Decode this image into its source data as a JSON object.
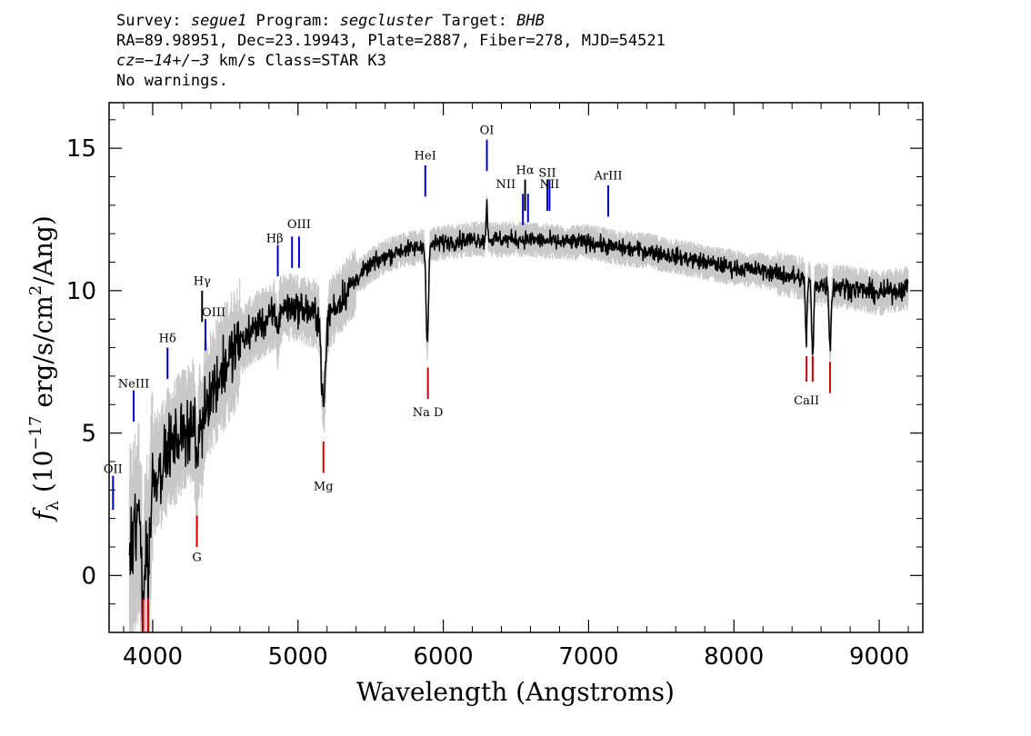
{
  "header": {
    "line1": {
      "survey_label": "Survey: ",
      "survey": "segue1",
      "program_label": " Program: ",
      "program": "segcluster",
      "target_label": " Target: ",
      "target": "BHB"
    },
    "line2": "RA=89.98951, Dec=23.19943, Plate=2887, Fiber=278, MJD=54521",
    "line3": {
      "cz": "cz=−14+/−3",
      "rest": " km/s Class=STAR K3"
    },
    "line4": "No warnings."
  },
  "chart_data": {
    "type": "line",
    "xlabel": "Wavelength (Angstroms)",
    "ylabel_parts": {
      "f": "f",
      "sub": "λ",
      "pre": " (10",
      "exp": "−17",
      "mid": " erg/s/cm",
      "exp2": "2",
      "post": "/Ang)"
    },
    "xlim": [
      3700,
      9300
    ],
    "ylim": [
      -2,
      16.6
    ],
    "xticks": [
      4000,
      5000,
      6000,
      7000,
      8000,
      9000
    ],
    "yticks": [
      0,
      5,
      10,
      15
    ],
    "continuum": [
      [
        3850,
        1.0
      ],
      [
        3900,
        2.0
      ],
      [
        4000,
        3.3
      ],
      [
        4100,
        4.3
      ],
      [
        4200,
        5.0
      ],
      [
        4300,
        5.5
      ],
      [
        4400,
        6.4
      ],
      [
        4500,
        7.4
      ],
      [
        4600,
        8.2
      ],
      [
        4700,
        8.7
      ],
      [
        4800,
        9.0
      ],
      [
        4900,
        9.4
      ],
      [
        5000,
        9.4
      ],
      [
        5100,
        9.2
      ],
      [
        5200,
        9.1
      ],
      [
        5300,
        9.7
      ],
      [
        5400,
        10.4
      ],
      [
        5500,
        10.9
      ],
      [
        5600,
        11.2
      ],
      [
        5700,
        11.4
      ],
      [
        5800,
        11.5
      ],
      [
        5900,
        11.6
      ],
      [
        6000,
        11.7
      ],
      [
        6200,
        11.8
      ],
      [
        6400,
        11.8
      ],
      [
        6600,
        11.8
      ],
      [
        6800,
        11.7
      ],
      [
        7000,
        11.7
      ],
      [
        7200,
        11.5
      ],
      [
        7400,
        11.4
      ],
      [
        7600,
        11.2
      ],
      [
        7800,
        11.0
      ],
      [
        8000,
        10.8
      ],
      [
        8200,
        10.7
      ],
      [
        8400,
        10.5
      ],
      [
        8600,
        10.2
      ],
      [
        8800,
        10.1
      ],
      [
        9000,
        9.9
      ],
      [
        9200,
        10.1
      ]
    ],
    "absorption": [
      {
        "center": 3935,
        "depth": 3.0,
        "width": 12
      },
      {
        "center": 3970,
        "depth": 2.5,
        "width": 12
      },
      {
        "center": 4305,
        "depth": 1.8,
        "width": 10
      },
      {
        "center": 4340,
        "depth": 1.0,
        "width": 6
      },
      {
        "center": 4861,
        "depth": 0.8,
        "width": 6
      },
      {
        "center": 5175,
        "depth": 3.2,
        "width": 14
      },
      {
        "center": 5890,
        "depth": 3.5,
        "width": 8
      },
      {
        "center": 8498,
        "depth": 2.0,
        "width": 6
      },
      {
        "center": 8542,
        "depth": 2.6,
        "width": 7
      },
      {
        "center": 8662,
        "depth": 2.1,
        "width": 7
      }
    ],
    "emission": [
      {
        "center": 6300,
        "height": 1.2,
        "width": 5
      }
    ],
    "lines": [
      {
        "label": "OII",
        "x": 3727,
        "y1": 2.3,
        "y2": 3.5,
        "color": "#0000cc",
        "tx": 3727,
        "ty": 3.6
      },
      {
        "label": "NeIII",
        "x": 3869,
        "y1": 5.4,
        "y2": 6.5,
        "color": "#0000cc",
        "tx": 3869,
        "ty": 6.6
      },
      {
        "label": "Hδ",
        "x": 4102,
        "y1": 6.9,
        "y2": 8.0,
        "color": "#0000cc",
        "tx": 4102,
        "ty": 8.2
      },
      {
        "label": "Hγ",
        "x": 4340,
        "y1": 8.9,
        "y2": 10.0,
        "color": "#000000",
        "tx": 4340,
        "ty": 10.2
      },
      {
        "label": "OIII",
        "x": 4363,
        "y1": 7.9,
        "y2": 9.0,
        "color": "#0000cc",
        "tx": 4420,
        "ty": 9.1
      },
      {
        "label": "Hβ",
        "x": 4861,
        "y1": 10.5,
        "y2": 11.6,
        "color": "#0000cc",
        "tx": 4840,
        "ty": 11.7
      },
      {
        "label": "OIII",
        "x": 4959,
        "y1": 10.8,
        "y2": 11.9,
        "color": "#0000cc",
        "tx": 5007,
        "ty": 12.2
      },
      {
        "label": "",
        "x": 5007,
        "y1": 10.8,
        "y2": 11.9,
        "color": "#0000cc",
        "tx": 0,
        "ty": 0
      },
      {
        "label": "HeI",
        "x": 5876,
        "y1": 13.3,
        "y2": 14.4,
        "color": "#0000cc",
        "tx": 5876,
        "ty": 14.6
      },
      {
        "label": "OI",
        "x": 6300,
        "y1": 14.2,
        "y2": 15.3,
        "color": "#0000cc",
        "tx": 6300,
        "ty": 15.5
      },
      {
        "label": "NII",
        "x": 6548,
        "y1": 12.3,
        "y2": 13.4,
        "color": "#0000cc",
        "tx": 6430,
        "ty": 13.6
      },
      {
        "label": "Hα",
        "x": 6563,
        "y1": 12.8,
        "y2": 13.9,
        "color": "#000000",
        "tx": 6563,
        "ty": 14.1
      },
      {
        "label": "",
        "x": 6583,
        "y1": 12.4,
        "y2": 13.4,
        "color": "#0000cc",
        "tx": 0,
        "ty": 0
      },
      {
        "label": "SII",
        "x": 6716,
        "y1": 12.8,
        "y2": 13.9,
        "color": "#0000cc",
        "tx": 6716,
        "ty": 14.0
      },
      {
        "label": "NII",
        "x": 6731,
        "y1": 12.8,
        "y2": 13.9,
        "color": "#0000cc",
        "tx": 6731,
        "ty": 13.6
      },
      {
        "label": "ArIII",
        "x": 7135,
        "y1": 12.6,
        "y2": 13.7,
        "color": "#0000cc",
        "tx": 7135,
        "ty": 13.9
      },
      {
        "label": "G",
        "x": 4304,
        "y1": 1.0,
        "y2": 2.1,
        "color": "#cc0000",
        "tx": 4304,
        "ty": 0.5
      },
      {
        "label": "Mg",
        "x": 5175,
        "y1": 3.6,
        "y2": 4.7,
        "color": "#cc0000",
        "tx": 5175,
        "ty": 3.0
      },
      {
        "label": "Na D",
        "x": 5894,
        "y1": 6.2,
        "y2": 7.3,
        "color": "#cc0000",
        "tx": 5894,
        "ty": 5.6
      },
      {
        "label": "CaII",
        "x": 8500,
        "y1": 6.8,
        "y2": 7.7,
        "color": "#cc0000",
        "tx": 8500,
        "ty": 6.0
      },
      {
        "label": "",
        "x": 8542,
        "y1": 6.8,
        "y2": 7.7,
        "color": "#cc0000",
        "tx": 0,
        "ty": 0
      },
      {
        "label": "",
        "x": 8662,
        "y1": 6.4,
        "y2": 7.5,
        "color": "#cc0000",
        "tx": 0,
        "ty": 0
      },
      {
        "label": "",
        "x": 3934,
        "y1": -2.0,
        "y2": -0.8,
        "color": "#cc0000",
        "tx": 0,
        "ty": 0
      },
      {
        "label": "",
        "x": 3969,
        "y1": -2.0,
        "y2": -0.8,
        "color": "#cc0000",
        "tx": 0,
        "ty": 0
      }
    ],
    "colors": {
      "flux": "#000000",
      "error_band": "#c8c8c8",
      "emission": "#0000cc",
      "absorption": "#cc0000"
    }
  }
}
